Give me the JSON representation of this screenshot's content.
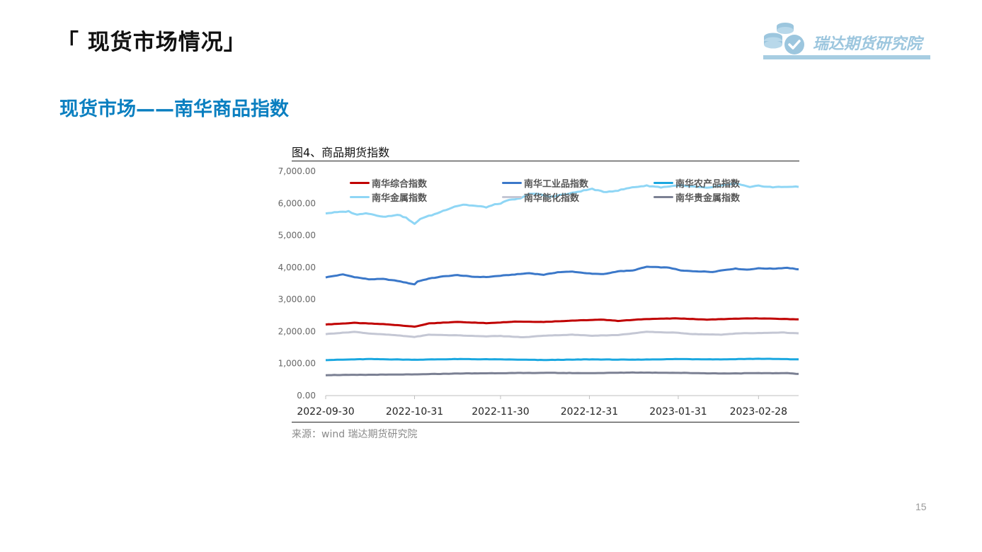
{
  "header": {
    "title": "「 现货市场情况」"
  },
  "logo": {
    "text": "瑞达期货研究院",
    "icon": "coins-check-icon"
  },
  "section": {
    "title": "现货市场——南华商品指数"
  },
  "figure": {
    "caption": "图4、商品期货指数",
    "source": "来源：wind   瑞达期货研究院"
  },
  "chart_data": {
    "type": "line",
    "title": "",
    "xlabel": "",
    "ylabel": "",
    "ylim": [
      0,
      7000
    ],
    "y_ticks": [
      "0.00",
      "1,000.00",
      "2,000.00",
      "3,000.00",
      "4,000.00",
      "5,000.00",
      "6,000.00",
      "7,000.00"
    ],
    "x_range": [
      "2022-09-30",
      "2023-03-14"
    ],
    "x_tick_labels": [
      "2022-09-30",
      "2022-10-31",
      "2022-11-30",
      "2022-12-31",
      "2023-01-31",
      "2023-02-28"
    ],
    "grid": false,
    "legend_position": "top",
    "series": [
      {
        "name": "南华综合指数",
        "color": "#c00000",
        "points": [
          [
            "2022-09-30",
            2220
          ],
          [
            "2022-10-10",
            2270
          ],
          [
            "2022-10-20",
            2230
          ],
          [
            "2022-10-25",
            2200
          ],
          [
            "2022-10-31",
            2150
          ],
          [
            "2022-11-05",
            2250
          ],
          [
            "2022-11-15",
            2300
          ],
          [
            "2022-11-25",
            2260
          ],
          [
            "2022-12-05",
            2310
          ],
          [
            "2022-12-15",
            2300
          ],
          [
            "2022-12-25",
            2340
          ],
          [
            "2023-01-05",
            2370
          ],
          [
            "2023-01-10",
            2330
          ],
          [
            "2023-01-20",
            2390
          ],
          [
            "2023-01-31",
            2410
          ],
          [
            "2023-02-10",
            2370
          ],
          [
            "2023-02-20",
            2400
          ],
          [
            "2023-02-28",
            2410
          ],
          [
            "2023-03-14",
            2380
          ]
        ]
      },
      {
        "name": "南华工业品指数",
        "color": "#3b78c9",
        "points": [
          [
            "2022-09-30",
            3690
          ],
          [
            "2022-10-06",
            3780
          ],
          [
            "2022-10-10",
            3700
          ],
          [
            "2022-10-15",
            3630
          ],
          [
            "2022-10-20",
            3640
          ],
          [
            "2022-10-25",
            3580
          ],
          [
            "2022-10-31",
            3470
          ],
          [
            "2022-11-01",
            3560
          ],
          [
            "2022-11-05",
            3650
          ],
          [
            "2022-11-10",
            3720
          ],
          [
            "2022-11-15",
            3760
          ],
          [
            "2022-11-20",
            3710
          ],
          [
            "2022-11-25",
            3700
          ],
          [
            "2022-11-30",
            3740
          ],
          [
            "2022-12-05",
            3780
          ],
          [
            "2022-12-10",
            3820
          ],
          [
            "2022-12-15",
            3770
          ],
          [
            "2022-12-20",
            3850
          ],
          [
            "2022-12-25",
            3870
          ],
          [
            "2023-01-01",
            3800
          ],
          [
            "2023-01-05",
            3790
          ],
          [
            "2023-01-10",
            3880
          ],
          [
            "2023-01-15",
            3900
          ],
          [
            "2023-01-20",
            4020
          ],
          [
            "2023-01-28",
            3990
          ],
          [
            "2023-02-01",
            3900
          ],
          [
            "2023-02-06",
            3880
          ],
          [
            "2023-02-12",
            3860
          ],
          [
            "2023-02-16",
            3920
          ],
          [
            "2023-02-20",
            3960
          ],
          [
            "2023-02-24",
            3930
          ],
          [
            "2023-02-28",
            3970
          ],
          [
            "2023-03-05",
            3960
          ],
          [
            "2023-03-10",
            3990
          ],
          [
            "2023-03-14",
            3940
          ]
        ]
      },
      {
        "name": "南华农产品指数",
        "color": "#1aa7e0",
        "points": [
          [
            "2022-09-30",
            1110
          ],
          [
            "2022-10-15",
            1140
          ],
          [
            "2022-10-31",
            1120
          ],
          [
            "2022-11-15",
            1140
          ],
          [
            "2022-11-30",
            1130
          ],
          [
            "2022-12-15",
            1110
          ],
          [
            "2022-12-31",
            1130
          ],
          [
            "2023-01-15",
            1120
          ],
          [
            "2023-01-31",
            1140
          ],
          [
            "2023-02-15",
            1130
          ],
          [
            "2023-02-28",
            1150
          ],
          [
            "2023-03-14",
            1130
          ]
        ]
      },
      {
        "name": "南华金属指数",
        "color": "#8fd6f5",
        "points": [
          [
            "2022-09-30",
            5690
          ],
          [
            "2022-10-08",
            5750
          ],
          [
            "2022-10-11",
            5640
          ],
          [
            "2022-10-14",
            5700
          ],
          [
            "2022-10-18",
            5620
          ],
          [
            "2022-10-21",
            5580
          ],
          [
            "2022-10-25",
            5650
          ],
          [
            "2022-10-28",
            5550
          ],
          [
            "2022-10-31",
            5350
          ],
          [
            "2022-11-02",
            5520
          ],
          [
            "2022-11-07",
            5660
          ],
          [
            "2022-11-11",
            5800
          ],
          [
            "2022-11-14",
            5900
          ],
          [
            "2022-11-17",
            5960
          ],
          [
            "2022-11-21",
            5920
          ],
          [
            "2022-11-25",
            5880
          ],
          [
            "2022-11-28",
            5960
          ],
          [
            "2022-11-30",
            6000
          ],
          [
            "2022-12-03",
            6100
          ],
          [
            "2022-12-07",
            6150
          ],
          [
            "2022-12-10",
            6300
          ],
          [
            "2022-12-14",
            6280
          ],
          [
            "2022-12-17",
            6200
          ],
          [
            "2022-12-21",
            6260
          ],
          [
            "2022-12-24",
            6300
          ],
          [
            "2022-12-28",
            6380
          ],
          [
            "2023-01-01",
            6450
          ],
          [
            "2023-01-05",
            6350
          ],
          [
            "2023-01-10",
            6400
          ],
          [
            "2023-01-15",
            6500
          ],
          [
            "2023-01-20",
            6550
          ],
          [
            "2023-01-25",
            6500
          ],
          [
            "2023-01-31",
            6560
          ],
          [
            "2023-02-05",
            6520
          ],
          [
            "2023-02-10",
            6480
          ],
          [
            "2023-02-15",
            6550
          ],
          [
            "2023-02-20",
            6620
          ],
          [
            "2023-02-25",
            6500
          ],
          [
            "2023-02-28",
            6550
          ],
          [
            "2023-03-05",
            6500
          ],
          [
            "2023-03-10",
            6520
          ],
          [
            "2023-03-14",
            6510
          ]
        ]
      },
      {
        "name": "南华能化指数",
        "color": "#c4c7d4",
        "points": [
          [
            "2022-09-30",
            1920
          ],
          [
            "2022-10-10",
            1990
          ],
          [
            "2022-10-15",
            1940
          ],
          [
            "2022-10-25",
            1880
          ],
          [
            "2022-10-31",
            1830
          ],
          [
            "2022-11-05",
            1900
          ],
          [
            "2022-11-15",
            1880
          ],
          [
            "2022-11-25",
            1850
          ],
          [
            "2022-11-30",
            1860
          ],
          [
            "2022-12-08",
            1820
          ],
          [
            "2022-12-15",
            1870
          ],
          [
            "2022-12-25",
            1900
          ],
          [
            "2023-01-01",
            1870
          ],
          [
            "2023-01-10",
            1890
          ],
          [
            "2023-01-20",
            1990
          ],
          [
            "2023-01-31",
            1960
          ],
          [
            "2023-02-05",
            1920
          ],
          [
            "2023-02-15",
            1900
          ],
          [
            "2023-02-20",
            1940
          ],
          [
            "2023-02-28",
            1950
          ],
          [
            "2023-03-08",
            1970
          ],
          [
            "2023-03-14",
            1940
          ]
        ]
      },
      {
        "name": "南华贵金属指数",
        "color": "#7b8093",
        "points": [
          [
            "2022-09-30",
            640
          ],
          [
            "2022-10-15",
            650
          ],
          [
            "2022-10-31",
            660
          ],
          [
            "2022-11-15",
            690
          ],
          [
            "2022-11-30",
            700
          ],
          [
            "2022-12-15",
            710
          ],
          [
            "2022-12-31",
            700
          ],
          [
            "2023-01-15",
            720
          ],
          [
            "2023-01-31",
            710
          ],
          [
            "2023-02-15",
            690
          ],
          [
            "2023-02-28",
            700
          ],
          [
            "2023-03-10",
            700
          ],
          [
            "2023-03-14",
            680
          ]
        ]
      }
    ]
  },
  "footer": {
    "page_number": "15"
  }
}
